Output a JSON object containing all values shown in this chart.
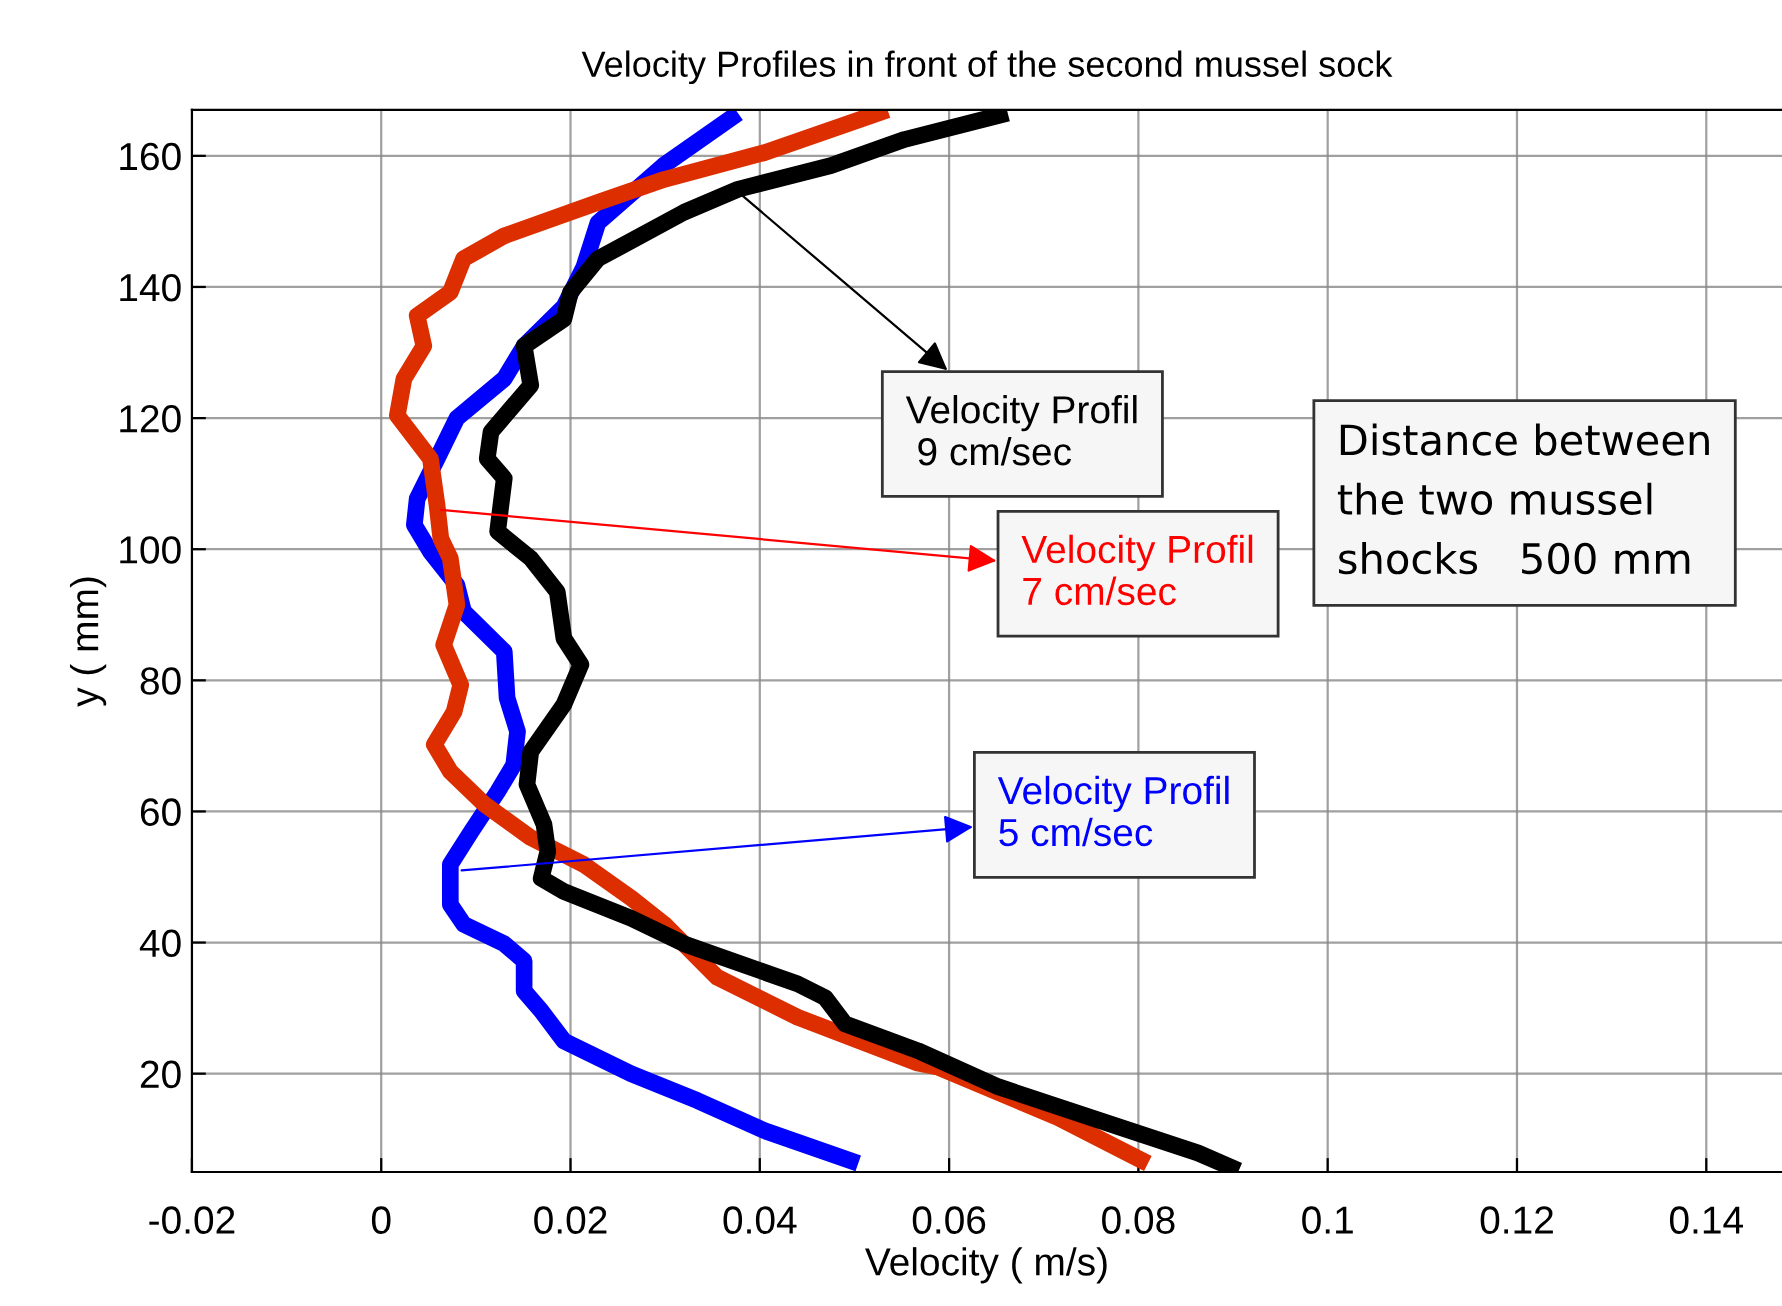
{
  "chart_data": {
    "type": "line",
    "title": "Velocity Profiles in front of the second mussel sock",
    "xlabel": "Velocity ( m/s)",
    "ylabel": "y ( mm)",
    "series": [
      {
        "color": "#0000ff",
        "x": [
          0.0377,
          0.0298,
          0.0229,
          0.0214,
          0.0193,
          0.0151,
          0.013,
          0.008,
          0.0059,
          0.0038,
          0.0035,
          0.0052,
          0.008,
          0.0087,
          0.013,
          0.0133,
          0.0144,
          0.014,
          0.0123,
          0.0095,
          0.0073,
          0.0073,
          0.0087,
          0.013,
          0.0151,
          0.0151,
          0.0169,
          0.0193,
          0.0264,
          0.0334,
          0.0405,
          0.0504
        ],
        "values": [
          166.5,
          158.5,
          149.8,
          143,
          137,
          131,
          126,
          120,
          113.8,
          107.7,
          103.7,
          99.6,
          94.5,
          90.5,
          84.4,
          77.3,
          72.2,
          67.1,
          63,
          56.9,
          51.9,
          45.8,
          42.8,
          39.8,
          37.2,
          32.6,
          29.6,
          25,
          20,
          15.9,
          11.3,
          6.3
        ]
      },
      {
        "color": "#dd2e00",
        "x": [
          0.0535,
          0.0405,
          0.0299,
          0.0229,
          0.013,
          0.0087,
          0.0073,
          0.0038,
          0.0045,
          0.0024,
          0.0017,
          0.0052,
          0.0059,
          0.0063,
          0.0073,
          0.008,
          0.0066,
          0.0084,
          0.0077,
          0.0056,
          0.0073,
          0.0109,
          0.0158,
          0.0214,
          0.0264,
          0.0299,
          0.0355,
          0.044,
          0.0567,
          0.0588,
          0.0715,
          0.081
        ],
        "values": [
          167,
          160.5,
          156.4,
          152.9,
          147.8,
          144.3,
          139.2,
          135.6,
          131,
          126,
          120.4,
          113.8,
          106.7,
          101.6,
          98.6,
          91.5,
          85.4,
          79.3,
          75.2,
          70.2,
          66.1,
          61.1,
          56,
          51.9,
          46.8,
          42.8,
          34.7,
          28.6,
          21.6,
          21,
          13.3,
          6.3
        ]
      },
      {
        "color": "#000000",
        "x": [
          0.0662,
          0.0553,
          0.0475,
          0.0377,
          0.032,
          0.0229,
          0.02,
          0.0193,
          0.0151,
          0.0158,
          0.0116,
          0.0112,
          0.013,
          0.0123,
          0.0158,
          0.0186,
          0.0193,
          0.0211,
          0.0193,
          0.0158,
          0.0154,
          0.0172,
          0.0176,
          0.0169,
          0.0193,
          0.0264,
          0.032,
          0.044,
          0.0469,
          0.049,
          0.0567,
          0.0652,
          0.0779,
          0.0863,
          0.0906
        ],
        "values": [
          166.5,
          162.5,
          158.5,
          154.9,
          151.4,
          144.3,
          139.2,
          135.1,
          131,
          125,
          117.9,
          113.8,
          110.8,
          102.7,
          98.6,
          93.5,
          86.4,
          82.4,
          76.3,
          69.1,
          64.1,
          58,
          53.9,
          49.8,
          47.8,
          43.7,
          39.8,
          33.7,
          31.6,
          27.6,
          23.5,
          18,
          11.9,
          7.9,
          5.2
        ]
      }
    ],
    "annotations": [
      {
        "text": "Velocity Profil\n 9 cm/sec",
        "x": 0.0381,
        "y": 154
      },
      {
        "text": "Velocity Profil\n7 cm/sec",
        "x": 0.0063,
        "y": 106
      },
      {
        "text": "Velocity Profil\n5 cm/sec",
        "x": 0.0085,
        "y": 51
      },
      "Distance between\nthe two mussel\nshocks   500 mm"
    ],
    "xlim": [
      -0.02,
      0.148
    ],
    "ylim": [
      5,
      167
    ],
    "xticks": [
      -0.02,
      0,
      0.02,
      0.04,
      0.06,
      0.08,
      0.1,
      0.12,
      0.14
    ],
    "yticks": [
      20,
      40,
      60,
      80,
      100,
      120,
      140,
      160
    ],
    "grid": true,
    "marker": "none",
    "line_style": "solid"
  }
}
